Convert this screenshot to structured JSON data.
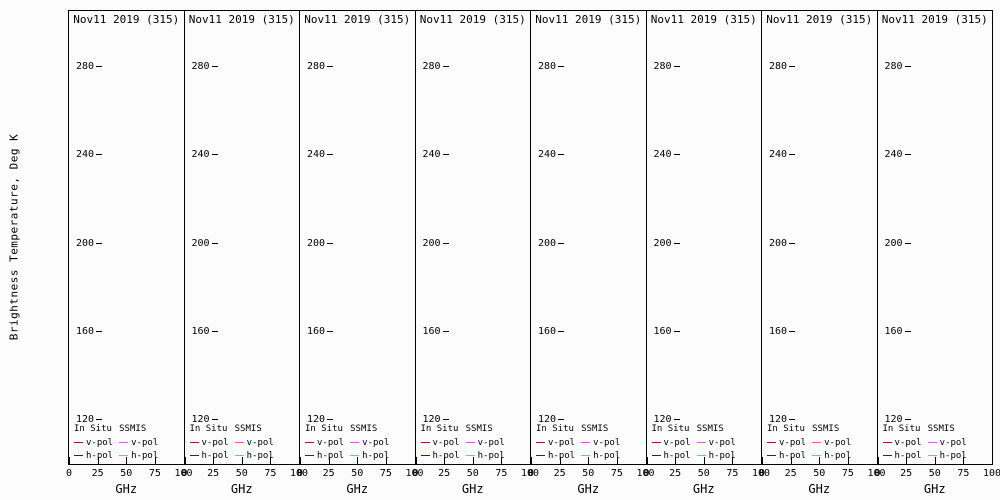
{
  "figure": {
    "background": "#fcfcfc",
    "frame_color": "#000000",
    "num_panels": 8,
    "ylabel": "Brightness Temperature, Deg K"
  },
  "chart_data": {
    "type": "line",
    "panels": 8,
    "panel_title": "Nov11 2019 (315)",
    "note": "Eight identical side-by-side panels; all panels are empty (no data curves plotted)",
    "xlabel": "GHz",
    "ylabel": "Brightness Temperature, Deg K",
    "xlim": [
      0,
      100
    ],
    "x_ticks": [
      0,
      25,
      50,
      75,
      100
    ],
    "ylim": [
      100,
      305
    ],
    "y_ticks": [
      280,
      240,
      200,
      160,
      120
    ],
    "grid": false,
    "legend": {
      "position": "bottom-left inside each panel",
      "columns": [
        {
          "header": "In Situ",
          "entries": [
            {
              "label": "v-pol",
              "color": "#8b2323"
            },
            {
              "label": "h-pol",
              "color": "#222266"
            }
          ]
        },
        {
          "header": "SSMIS",
          "entries": [
            {
              "label": "v-pol",
              "color": "#cc66cc"
            },
            {
              "label": "h-pol",
              "color": "#55cccc"
            }
          ]
        }
      ]
    },
    "series": []
  }
}
